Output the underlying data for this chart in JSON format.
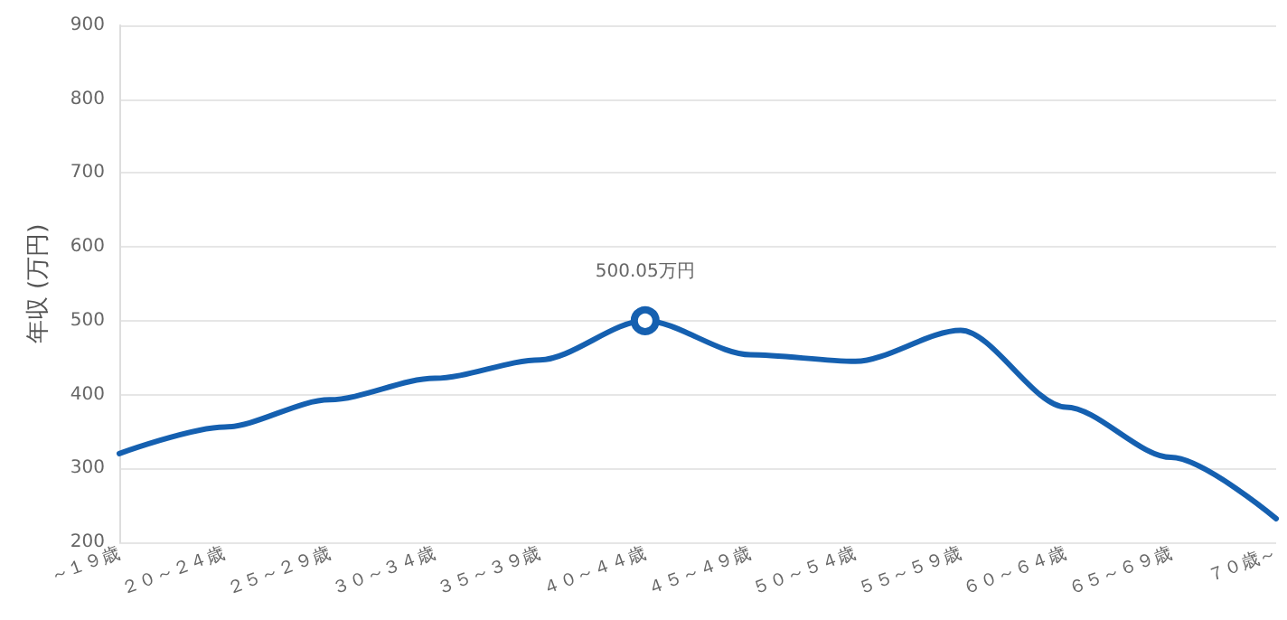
{
  "chart_data": {
    "type": "line",
    "ylabel": "年収 (万円)",
    "categories": [
      "～１９歳",
      "２０～２４歳",
      "２５～２９歳",
      "３０～３４歳",
      "３５～３９歳",
      "４０～４４歳",
      "４５～４９歳",
      "５０～５４歳",
      "５５～５９歳",
      "６０～６４歳",
      "６５～６９歳",
      "７０歳～"
    ],
    "series": [
      {
        "color": "#1560b0",
        "values": [
          320,
          356,
          393,
          422,
          447,
          500.05,
          454,
          445,
          487,
          383,
          315,
          232
        ],
        "value_labels": [
          null,
          null,
          null,
          null,
          null,
          "500.05万円",
          null,
          null,
          null,
          null,
          null,
          null
        ]
      }
    ],
    "ylim": [
      200,
      900
    ],
    "yticks": [
      200,
      300,
      400,
      500,
      600,
      700,
      800,
      900
    ],
    "grid": "y",
    "marker": "none"
  }
}
